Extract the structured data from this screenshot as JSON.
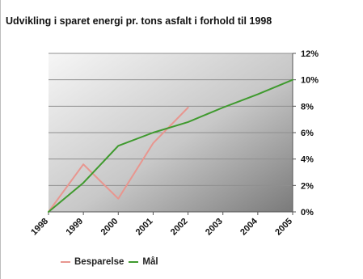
{
  "chart_data": {
    "type": "line",
    "title": "Udvikling i sparet energi pr. tons asfalt i forhold til 1998",
    "xlabel": "",
    "ylabel": "",
    "categories": [
      "1998",
      "1999",
      "2000",
      "2001",
      "2002",
      "2003",
      "2004",
      "2005"
    ],
    "y_tick_labels": [
      "0%",
      "2%",
      "4%",
      "6%",
      "8%",
      "10%",
      "12%"
    ],
    "ylim": [
      0,
      12
    ],
    "y_axis_side": "right",
    "grid": true,
    "legend_position": "bottom",
    "series": [
      {
        "name": "Besparelse",
        "color": "#e8968f",
        "points": [
          [
            1998,
            0
          ],
          [
            1999,
            3.6
          ],
          [
            2000,
            1.0
          ],
          [
            2001,
            5.2
          ],
          [
            2002,
            7.9
          ]
        ]
      },
      {
        "name": "Mål",
        "color": "#3f9a2e",
        "points": [
          [
            1998,
            0
          ],
          [
            1999,
            2.2
          ],
          [
            2000,
            5.0
          ],
          [
            2001,
            6.0
          ],
          [
            2002,
            6.8
          ],
          [
            2003,
            7.9
          ],
          [
            2004,
            8.9
          ],
          [
            2005,
            10.0
          ]
        ]
      }
    ]
  }
}
